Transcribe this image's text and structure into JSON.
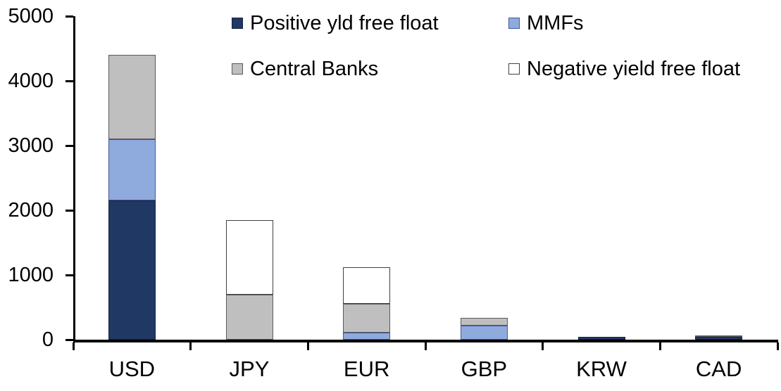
{
  "chart_data": {
    "type": "bar",
    "stacked": true,
    "title": "",
    "xlabel": "",
    "ylabel": "",
    "categories": [
      "USD",
      "JPY",
      "EUR",
      "GBP",
      "KRW",
      "CAD"
    ],
    "series": [
      {
        "name": "Positive yld free float",
        "color": "#1f3864",
        "border": "#16233f",
        "values": [
          2150,
          0,
          0,
          0,
          45,
          40
        ]
      },
      {
        "name": "MMFs",
        "color": "#8faadc",
        "border": "#41599b",
        "values": [
          950,
          0,
          110,
          220,
          0,
          0
        ]
      },
      {
        "name": "Central Banks",
        "color": "#bfbfbf",
        "border": "#595959",
        "values": [
          1300,
          700,
          440,
          115,
          0,
          25
        ]
      },
      {
        "name": "Negative yield free float",
        "color": "#ffffff",
        "border": "#404040",
        "values": [
          0,
          1150,
          570,
          0,
          0,
          0
        ]
      }
    ],
    "totals": [
      4400,
      1850,
      1120,
      335,
      45,
      65
    ],
    "ylim": [
      0,
      5000
    ],
    "yticks": [
      0,
      1000,
      2000,
      3000,
      4000,
      5000
    ],
    "grid": false,
    "legend_position": "top",
    "axis_color": "#000000",
    "text_color": "#000000"
  }
}
